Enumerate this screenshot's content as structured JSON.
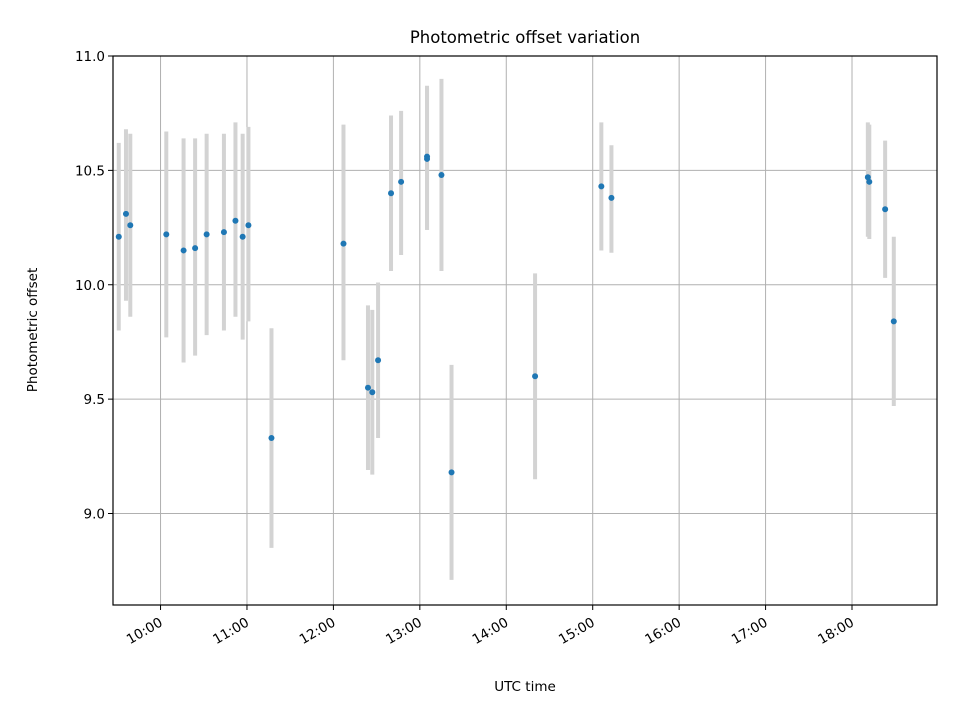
{
  "chart_data": {
    "type": "scatter",
    "title": "Photometric offset variation",
    "xlabel": "UTC time",
    "ylabel": "Photometric offset",
    "x_axis_type": "time",
    "xlim": [
      "09:27",
      "18:59"
    ],
    "ylim": [
      8.6,
      11.0
    ],
    "x_ticks": [
      "10:00",
      "11:00",
      "12:00",
      "13:00",
      "14:00",
      "15:00",
      "16:00",
      "17:00",
      "18:00"
    ],
    "y_ticks": [
      "9.0",
      "9.5",
      "10.0",
      "10.5",
      "11.0"
    ],
    "grid": true,
    "legend": false,
    "colors": {
      "points": "#1f77b4",
      "error_bars": "#d3d3d3",
      "grid": "#b0b0b0"
    },
    "points": [
      {
        "time": "09:31",
        "y": 10.21,
        "lo": 9.8,
        "hi": 10.62
      },
      {
        "time": "09:36",
        "y": 10.31,
        "lo": 9.93,
        "hi": 10.68
      },
      {
        "time": "09:39",
        "y": 10.26,
        "lo": 9.86,
        "hi": 10.66
      },
      {
        "time": "10:04",
        "y": 10.22,
        "lo": 9.77,
        "hi": 10.67
      },
      {
        "time": "10:16",
        "y": 10.15,
        "lo": 9.66,
        "hi": 10.64
      },
      {
        "time": "10:24",
        "y": 10.16,
        "lo": 9.69,
        "hi": 10.64
      },
      {
        "time": "10:32",
        "y": 10.22,
        "lo": 9.78,
        "hi": 10.66
      },
      {
        "time": "10:44",
        "y": 10.23,
        "lo": 9.8,
        "hi": 10.66
      },
      {
        "time": "10:52",
        "y": 10.28,
        "lo": 9.86,
        "hi": 10.71
      },
      {
        "time": "10:57",
        "y": 10.21,
        "lo": 9.76,
        "hi": 10.66
      },
      {
        "time": "11:01",
        "y": 10.26,
        "lo": 9.84,
        "hi": 10.69
      },
      {
        "time": "11:17",
        "y": 9.33,
        "lo": 8.85,
        "hi": 9.81
      },
      {
        "time": "12:07",
        "y": 10.18,
        "lo": 9.67,
        "hi": 10.7
      },
      {
        "time": "12:24",
        "y": 9.55,
        "lo": 9.19,
        "hi": 9.91
      },
      {
        "time": "12:27",
        "y": 9.53,
        "lo": 9.17,
        "hi": 9.89
      },
      {
        "time": "12:31",
        "y": 9.67,
        "lo": 9.33,
        "hi": 10.01
      },
      {
        "time": "12:40",
        "y": 10.4,
        "lo": 10.06,
        "hi": 10.74
      },
      {
        "time": "12:47",
        "y": 10.45,
        "lo": 10.13,
        "hi": 10.76
      },
      {
        "time": "13:05",
        "y": 10.56,
        "lo": 10.24,
        "hi": 10.87
      },
      {
        "time": "13:05",
        "y": 10.55,
        "lo": 10.24,
        "hi": 10.86
      },
      {
        "time": "13:15",
        "y": 10.48,
        "lo": 10.06,
        "hi": 10.9
      },
      {
        "time": "13:22",
        "y": 9.18,
        "lo": 8.71,
        "hi": 9.65
      },
      {
        "time": "14:20",
        "y": 9.6,
        "lo": 9.15,
        "hi": 10.05
      },
      {
        "time": "15:06",
        "y": 10.43,
        "lo": 10.15,
        "hi": 10.71
      },
      {
        "time": "15:13",
        "y": 10.38,
        "lo": 10.14,
        "hi": 10.61
      },
      {
        "time": "18:11",
        "y": 10.47,
        "lo": 10.21,
        "hi": 10.71
      },
      {
        "time": "18:12",
        "y": 10.45,
        "lo": 10.2,
        "hi": 10.7
      },
      {
        "time": "18:23",
        "y": 10.33,
        "lo": 10.03,
        "hi": 10.63
      },
      {
        "time": "18:29",
        "y": 9.84,
        "lo": 9.47,
        "hi": 10.21
      }
    ]
  }
}
